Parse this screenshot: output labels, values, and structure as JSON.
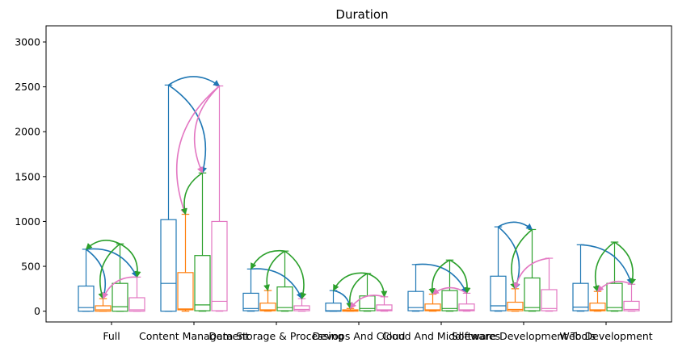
{
  "chart_data": {
    "type": "box",
    "title": "Duration",
    "xlabel": "",
    "ylabel": "",
    "ylim": [
      -120,
      3180
    ],
    "yticks": [
      0,
      500,
      1000,
      1500,
      2000,
      2500,
      3000
    ],
    "categories": [
      "Full",
      "Content Management",
      "Data Storage & Processing",
      "Devops And Cloud",
      "Cloud And Middlewares",
      "Software Development Tools",
      "Web Development"
    ],
    "grid": false,
    "legend": "none",
    "series": [
      {
        "color": "#1f77b4",
        "boxes": [
          {
            "whislo": 0,
            "q1": 0,
            "med": 40,
            "q3": 280,
            "whishi": 690
          },
          {
            "whislo": 0,
            "q1": 0,
            "med": 310,
            "q3": 1020,
            "whishi": 2520
          },
          {
            "whislo": 0,
            "q1": 5,
            "med": 30,
            "q3": 200,
            "whishi": 470
          },
          {
            "whislo": 0,
            "q1": 0,
            "med": 5,
            "q3": 90,
            "whishi": 230
          },
          {
            "whislo": 0,
            "q1": 5,
            "med": 40,
            "q3": 220,
            "whishi": 520
          },
          {
            "whislo": 0,
            "q1": 5,
            "med": 60,
            "q3": 390,
            "whishi": 940
          },
          {
            "whislo": 0,
            "q1": 5,
            "med": 45,
            "q3": 310,
            "whishi": 740
          }
        ]
      },
      {
        "color": "#ff7f0e",
        "boxes": [
          {
            "whislo": 0,
            "q1": 0,
            "med": 15,
            "q3": 60,
            "whishi": 140
          },
          {
            "whislo": 0,
            "q1": 15,
            "med": 25,
            "q3": 430,
            "whishi": 1080
          },
          {
            "whislo": 0,
            "q1": 5,
            "med": 15,
            "q3": 90,
            "whishi": 230
          },
          {
            "whislo": 0,
            "q1": 0,
            "med": 5,
            "q3": 15,
            "whishi": 30
          },
          {
            "whislo": 0,
            "q1": 5,
            "med": 15,
            "q3": 80,
            "whishi": 190
          },
          {
            "whislo": 0,
            "q1": 5,
            "med": 20,
            "q3": 100,
            "whishi": 250
          },
          {
            "whislo": 0,
            "q1": 5,
            "med": 15,
            "q3": 90,
            "whishi": 220
          }
        ]
      },
      {
        "color": "#2ca02c",
        "boxes": [
          {
            "whislo": 0,
            "q1": 0,
            "med": 50,
            "q3": 310,
            "whishi": 750
          },
          {
            "whislo": 0,
            "q1": 5,
            "med": 70,
            "q3": 620,
            "whishi": 1540
          },
          {
            "whislo": 0,
            "q1": 5,
            "med": 40,
            "q3": 270,
            "whishi": 670
          },
          {
            "whislo": 0,
            "q1": 5,
            "med": 30,
            "q3": 170,
            "whishi": 420
          },
          {
            "whislo": 0,
            "q1": 5,
            "med": 30,
            "q3": 230,
            "whishi": 570
          },
          {
            "whislo": 0,
            "q1": 5,
            "med": 40,
            "q3": 370,
            "whishi": 910
          },
          {
            "whislo": 0,
            "q1": 5,
            "med": 40,
            "q3": 310,
            "whishi": 770
          }
        ]
      },
      {
        "color": "#e377c2",
        "boxes": [
          {
            "whislo": 0,
            "q1": 0,
            "med": 15,
            "q3": 150,
            "whishi": 380
          },
          {
            "whislo": 0,
            "q1": 5,
            "med": 110,
            "q3": 1000,
            "whishi": 2510
          },
          {
            "whislo": 0,
            "q1": 5,
            "med": 20,
            "q3": 60,
            "whishi": 140
          },
          {
            "whislo": 0,
            "q1": 5,
            "med": 15,
            "q3": 70,
            "whishi": 160
          },
          {
            "whislo": 0,
            "q1": 5,
            "med": 15,
            "q3": 80,
            "whishi": 200
          },
          {
            "whislo": 0,
            "q1": 5,
            "med": 30,
            "q3": 240,
            "whishi": 590
          },
          {
            "whislo": 0,
            "q1": 5,
            "med": 20,
            "q3": 110,
            "whishi": 300
          }
        ]
      }
    ],
    "arrows": [
      {
        "group": 0,
        "from": 0,
        "to": 1,
        "color": "#1f77b4"
      },
      {
        "group": 0,
        "from": 0,
        "to": 3,
        "color": "#1f77b4"
      },
      {
        "group": 0,
        "from": 2,
        "to": 1,
        "color": "#2ca02c"
      },
      {
        "group": 0,
        "from": 2,
        "to": 0,
        "color": "#2ca02c"
      },
      {
        "group": 0,
        "from": 2,
        "to": 3,
        "color": "#2ca02c"
      },
      {
        "group": 0,
        "from": 3,
        "to": 1,
        "color": "#e377c2"
      },
      {
        "group": 1,
        "from": 0,
        "to": 3,
        "color": "#1f77b4"
      },
      {
        "group": 1,
        "from": 0,
        "to": 2,
        "color": "#1f77b4"
      },
      {
        "group": 1,
        "from": 3,
        "to": 1,
        "color": "#e377c2"
      },
      {
        "group": 1,
        "from": 3,
        "to": 2,
        "color": "#e377c2"
      },
      {
        "group": 1,
        "from": 2,
        "to": 1,
        "color": "#2ca02c"
      },
      {
        "group": 2,
        "from": 0,
        "to": 3,
        "color": "#1f77b4"
      },
      {
        "group": 2,
        "from": 2,
        "to": 0,
        "color": "#2ca02c"
      },
      {
        "group": 2,
        "from": 2,
        "to": 1,
        "color": "#2ca02c"
      },
      {
        "group": 2,
        "from": 2,
        "to": 3,
        "color": "#2ca02c"
      },
      {
        "group": 3,
        "from": 0,
        "to": 1,
        "color": "#1f77b4"
      },
      {
        "group": 3,
        "from": 2,
        "to": 0,
        "color": "#2ca02c"
      },
      {
        "group": 3,
        "from": 2,
        "to": 1,
        "color": "#2ca02c"
      },
      {
        "group": 3,
        "from": 2,
        "to": 3,
        "color": "#2ca02c"
      },
      {
        "group": 3,
        "from": 3,
        "to": 1,
        "color": "#e377c2"
      },
      {
        "group": 4,
        "from": 0,
        "to": 3,
        "color": "#1f77b4"
      },
      {
        "group": 4,
        "from": 2,
        "to": 1,
        "color": "#2ca02c"
      },
      {
        "group": 4,
        "from": 2,
        "to": 3,
        "color": "#2ca02c"
      },
      {
        "group": 4,
        "from": 3,
        "to": 1,
        "color": "#e377c2"
      },
      {
        "group": 5,
        "from": 0,
        "to": 1,
        "color": "#1f77b4"
      },
      {
        "group": 5,
        "from": 0,
        "to": 2,
        "color": "#1f77b4"
      },
      {
        "group": 5,
        "from": 2,
        "to": 1,
        "color": "#2ca02c"
      },
      {
        "group": 5,
        "from": 3,
        "to": 1,
        "color": "#e377c2"
      },
      {
        "group": 6,
        "from": 0,
        "to": 3,
        "color": "#1f77b4"
      },
      {
        "group": 6,
        "from": 2,
        "to": 1,
        "color": "#2ca02c"
      },
      {
        "group": 6,
        "from": 2,
        "to": 3,
        "color": "#2ca02c"
      },
      {
        "group": 6,
        "from": 3,
        "to": 1,
        "color": "#e377c2"
      }
    ]
  }
}
